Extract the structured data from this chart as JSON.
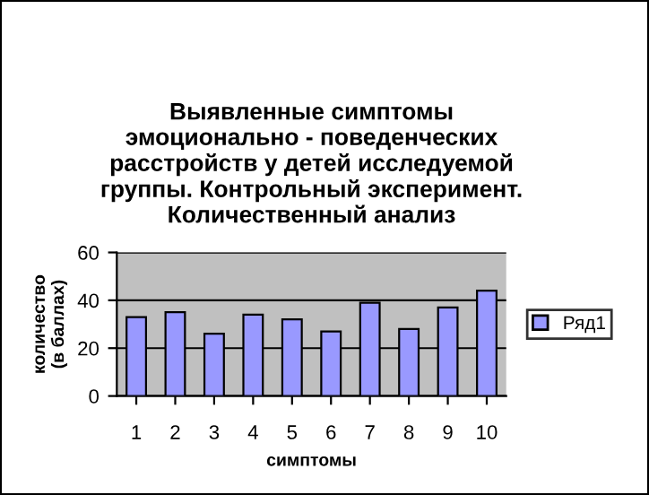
{
  "chart_data": {
    "type": "bar",
    "title": "Выявленные симптомы\nэмоционально - поведенческих\nрасстройств у детей исследуемой\nгруппы. Контрольный эксперимент.\nКоличественный анализ",
    "xlabel": "симптомы",
    "ylabel": "количество\n(в баллах)",
    "categories": [
      "1",
      "2",
      "3",
      "4",
      "5",
      "6",
      "7",
      "8",
      "9",
      "10"
    ],
    "series": [
      {
        "name": "Ряд1",
        "color": "#9999ff",
        "values": [
          33,
          35,
          26,
          34,
          32,
          27,
          39,
          28,
          37,
          44
        ]
      }
    ],
    "ylim": [
      0,
      60
    ],
    "yticks": [
      0,
      20,
      40,
      60
    ],
    "grid": "y",
    "legend": "right"
  }
}
